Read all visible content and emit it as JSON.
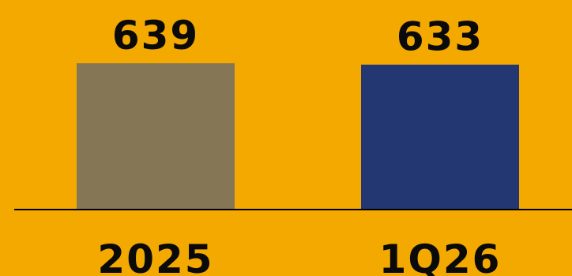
{
  "colors": {
    "background": "#F4A901",
    "bar_2025": "#857656",
    "bar_1q26": "#233773",
    "axis": "#000000"
  },
  "chart_data": {
    "type": "bar",
    "categories": [
      "2025",
      "1Q26"
    ],
    "values": [
      639,
      633
    ],
    "data_labels": [
      "639",
      "633"
    ],
    "title": "",
    "xlabel": "",
    "ylabel": "",
    "grid": false,
    "legend": "none"
  }
}
